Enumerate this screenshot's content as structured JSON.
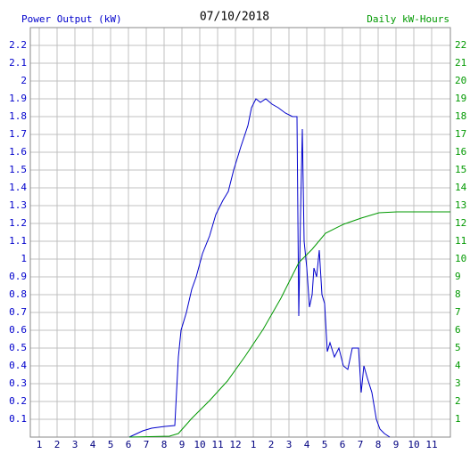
{
  "chart_data": {
    "type": "line",
    "title": "07/10/2018",
    "ylabel": "Power Output (kW)",
    "y2label": "Daily kW-Hours",
    "grid": true,
    "xlim": [
      0.5,
      24.05
    ],
    "xticks": [
      1,
      2,
      3,
      4,
      5,
      6,
      7,
      8,
      9,
      10,
      11,
      12,
      {
        "value": 13,
        "label": "1"
      },
      {
        "value": 14,
        "label": "2"
      },
      {
        "value": 15,
        "label": "3"
      },
      {
        "value": 16,
        "label": "4"
      },
      {
        "value": 17,
        "label": "5"
      },
      {
        "value": 18,
        "label": "6"
      },
      {
        "value": 19,
        "label": "7"
      },
      {
        "value": 20,
        "label": "8"
      },
      {
        "value": 21,
        "label": "9"
      },
      {
        "value": 22,
        "label": "10"
      },
      {
        "value": 23,
        "label": "11"
      }
    ],
    "ylim": [
      0,
      2.3
    ],
    "yticks": [
      0.1,
      0.2,
      0.3,
      0.4,
      0.5,
      0.6,
      0.7,
      0.8,
      0.9,
      1.0,
      1.1,
      1.2,
      1.3,
      1.4,
      1.5,
      1.6,
      1.7,
      1.8,
      1.9,
      2.0,
      2.1,
      2.2
    ],
    "y2lim": [
      0,
      23
    ],
    "y2ticks": [
      1,
      2,
      3,
      4,
      5,
      6,
      7,
      8,
      9,
      10,
      11,
      12,
      13,
      14,
      15,
      16,
      17,
      18,
      19,
      20,
      21,
      22
    ],
    "series": [
      {
        "color": "#0000cc",
        "axis": "y",
        "x": [
          6.05,
          6.8,
          7.3,
          8.05,
          8.6,
          8.8,
          8.95,
          9.25,
          9.55,
          9.8,
          10.15,
          10.55,
          10.9,
          11.3,
          11.6,
          11.9,
          12.3,
          12.7,
          12.9,
          13.15,
          13.4,
          13.7,
          14.05,
          14.4,
          14.8,
          15.2,
          15.45,
          15.55,
          15.65,
          15.75,
          15.85,
          16.0,
          16.15,
          16.3,
          16.4,
          16.55,
          16.7,
          16.85,
          17.0,
          17.15,
          17.3,
          17.55,
          17.8,
          18.05,
          18.3,
          18.55,
          18.9,
          19.05,
          19.2,
          19.4,
          19.65,
          19.9,
          20.1,
          20.35,
          20.65
        ],
        "values": [
          0,
          0.035,
          0.05,
          0.06,
          0.065,
          0.45,
          0.6,
          0.7,
          0.83,
          0.9,
          1.03,
          1.13,
          1.25,
          1.33,
          1.38,
          1.5,
          1.63,
          1.75,
          1.85,
          1.9,
          1.88,
          1.9,
          1.87,
          1.85,
          1.82,
          1.8,
          1.8,
          0.68,
          1.25,
          1.73,
          1.1,
          0.95,
          0.73,
          0.8,
          0.95,
          0.9,
          1.05,
          0.8,
          0.75,
          0.48,
          0.53,
          0.45,
          0.5,
          0.4,
          0.38,
          0.5,
          0.5,
          0.25,
          0.4,
          0.33,
          0.25,
          0.1,
          0.045,
          0.02,
          0
        ]
      },
      {
        "color": "#009900",
        "axis": "y2",
        "x": [
          6.05,
          8.3,
          8.8,
          9.55,
          10.55,
          11.55,
          12.55,
          13.55,
          14.55,
          15.55,
          16.3,
          17.05,
          18.05,
          19.05,
          20.05,
          21.05,
          24.05
        ],
        "values": [
          0,
          0.05,
          0.2,
          1.05,
          2.05,
          3.15,
          4.55,
          6.05,
          7.8,
          9.8,
          10.55,
          11.45,
          11.95,
          12.3,
          12.6,
          12.65,
          12.65
        ]
      }
    ]
  }
}
